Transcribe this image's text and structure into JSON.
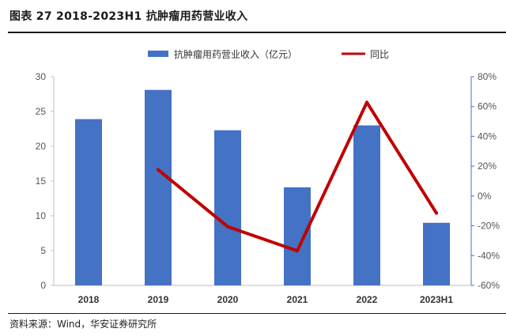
{
  "header": {
    "title": "图表 27 2018-2023H1 抗肿瘤用药营业收入"
  },
  "footer": {
    "source": "资料来源：Wind，华安证券研究所"
  },
  "colors": {
    "bar": "#4472C4",
    "line": "#C00000",
    "right_axis": "#4472C4"
  },
  "chart_data": {
    "type": "bar",
    "categories": [
      "2018",
      "2019",
      "2020",
      "2021",
      "2022",
      "2023H1"
    ],
    "series": [
      {
        "name": "抗肿瘤用药营业收入（亿元）",
        "type": "bar",
        "axis": "left",
        "values": [
          23.9,
          28.1,
          22.3,
          14.1,
          23.0,
          9.0
        ]
      },
      {
        "name": "同比",
        "type": "line",
        "axis": "right",
        "values": [
          null,
          17.6,
          -20.6,
          -36.8,
          62.8,
          -11.5
        ]
      }
    ],
    "ylim": [
      0,
      30
    ],
    "y_ticks": [
      "0",
      "5",
      "10",
      "15",
      "20",
      "25",
      "30"
    ],
    "y2lim": [
      -60,
      80
    ],
    "y2_ticks": [
      "-60%",
      "-40%",
      "-20%",
      "0%",
      "20%",
      "40%",
      "60%",
      "80%"
    ],
    "legend_position": "top",
    "grid": false
  }
}
